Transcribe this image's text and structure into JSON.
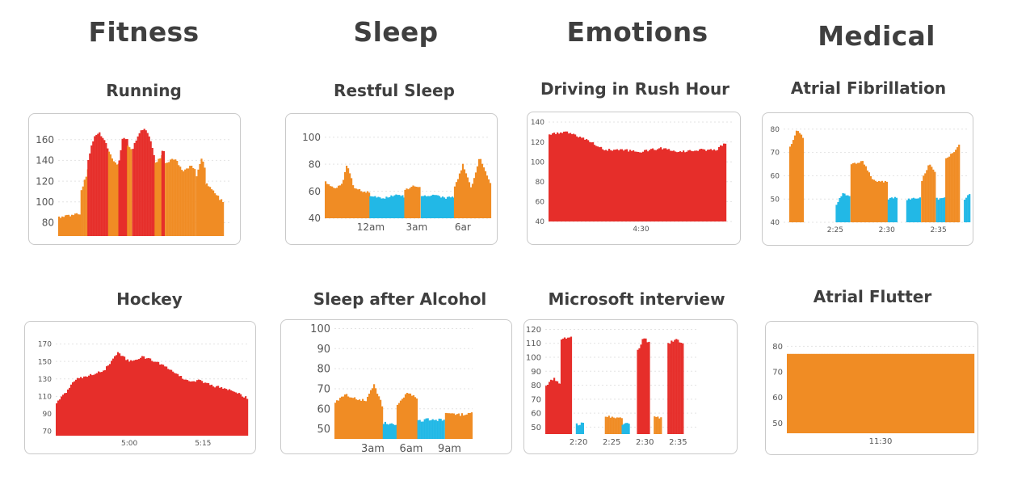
{
  "categories": [
    "Fitness",
    "Sleep",
    "Emotions",
    "Medical"
  ],
  "colors": {
    "red": "#e62e2a",
    "orange": "#f08c24",
    "blue": "#22b8e6",
    "grid": "#e3e3e3"
  },
  "chart_data": [
    {
      "type": "bar",
      "category": "Fitness",
      "title": "Running",
      "ylim": [
        67,
        177
      ],
      "yticks": [
        "80",
        "100",
        "120",
        "140",
        "160"
      ],
      "xticks": [],
      "segments": [
        {
          "from": 0,
          "to": 0.13,
          "color": "orange",
          "points": [
            [
              0,
              85
            ],
            [
              0.06,
              87
            ],
            [
              0.13,
              89
            ]
          ]
        },
        {
          "from": 0.13,
          "to": 0.17,
          "color": "orange",
          "points": [
            [
              0.13,
              110
            ],
            [
              0.17,
              132
            ]
          ]
        },
        {
          "from": 0.17,
          "to": 0.29,
          "color": "red",
          "points": [
            [
              0.17,
              140
            ],
            [
              0.2,
              161
            ],
            [
              0.23,
              167
            ],
            [
              0.26,
              162
            ],
            [
              0.29,
              148
            ]
          ]
        },
        {
          "from": 0.29,
          "to": 0.35,
          "color": "orange",
          "points": [
            [
              0.29,
              148
            ],
            [
              0.32,
              140
            ],
            [
              0.35,
              135
            ]
          ]
        },
        {
          "from": 0.35,
          "to": 0.4,
          "color": "red",
          "points": [
            [
              0.35,
              140
            ],
            [
              0.37,
              162
            ],
            [
              0.4,
              160
            ]
          ]
        },
        {
          "from": 0.4,
          "to": 0.43,
          "color": "orange",
          "points": [
            [
              0.4,
              155
            ],
            [
              0.43,
              150
            ]
          ]
        },
        {
          "from": 0.43,
          "to": 0.56,
          "color": "red",
          "points": [
            [
              0.43,
              152
            ],
            [
              0.47,
              168
            ],
            [
              0.5,
              172
            ],
            [
              0.53,
              162
            ],
            [
              0.56,
              140
            ]
          ]
        },
        {
          "from": 0.56,
          "to": 0.6,
          "color": "orange",
          "points": [
            [
              0.56,
              138
            ],
            [
              0.6,
              145
            ]
          ]
        },
        {
          "from": 0.6,
          "to": 0.62,
          "color": "red",
          "points": [
            [
              0.6,
              150
            ],
            [
              0.62,
              148
            ]
          ]
        },
        {
          "from": 0.62,
          "to": 0.8,
          "color": "orange",
          "points": [
            [
              0.62,
              138
            ],
            [
              0.67,
              142
            ],
            [
              0.72,
              130
            ],
            [
              0.77,
              135
            ],
            [
              0.8,
              128
            ]
          ]
        },
        {
          "from": 0.8,
          "to": 0.85,
          "color": "orange",
          "points": [
            [
              0.8,
              125
            ],
            [
              0.83,
              142
            ],
            [
              0.85,
              132
            ]
          ]
        },
        {
          "from": 0.85,
          "to": 0.96,
          "color": "orange",
          "points": [
            [
              0.85,
              118
            ],
            [
              0.9,
              110
            ],
            [
              0.96,
              98
            ]
          ]
        }
      ]
    },
    {
      "type": "bar",
      "category": "Sleep",
      "title": "Restful Sleep",
      "ylim": [
        40,
        104
      ],
      "yticks": [
        "40",
        "60",
        "80",
        "100"
      ],
      "xticks": [
        "12am",
        "3am",
        "6ar"
      ],
      "segments": [
        {
          "from": 0,
          "to": 0.27,
          "color": "orange",
          "points": [
            [
              0,
              67
            ],
            [
              0.05,
              62
            ],
            [
              0.1,
              65
            ],
            [
              0.13,
              80
            ],
            [
              0.17,
              63
            ],
            [
              0.22,
              60
            ],
            [
              0.27,
              59
            ]
          ]
        },
        {
          "from": 0.27,
          "to": 0.48,
          "color": "blue",
          "points": [
            [
              0.27,
              56
            ],
            [
              0.35,
              55
            ],
            [
              0.42,
              57
            ],
            [
              0.48,
              56
            ]
          ]
        },
        {
          "from": 0.48,
          "to": 0.58,
          "color": "orange",
          "points": [
            [
              0.48,
              61
            ],
            [
              0.53,
              64
            ],
            [
              0.58,
              62
            ]
          ]
        },
        {
          "from": 0.58,
          "to": 0.78,
          "color": "blue",
          "points": [
            [
              0.58,
              56
            ],
            [
              0.65,
              57
            ],
            [
              0.72,
              55
            ],
            [
              0.78,
              56
            ]
          ]
        },
        {
          "from": 0.78,
          "to": 1,
          "color": "orange",
          "points": [
            [
              0.78,
              63
            ],
            [
              0.83,
              80
            ],
            [
              0.88,
              62
            ],
            [
              0.93,
              85
            ],
            [
              1,
              65
            ]
          ]
        }
      ]
    },
    {
      "type": "bar",
      "category": "Emotions",
      "title": "Driving in Rush Hour",
      "ylim": [
        40,
        140
      ],
      "yticks": [
        "40",
        "60",
        "80",
        "100",
        "120",
        "140"
      ],
      "xticks": [
        "4:30"
      ],
      "segments": [
        {
          "from": 0,
          "to": 0.96,
          "color": "red",
          "points": [
            [
              0,
              128
            ],
            [
              0.1,
              130
            ],
            [
              0.2,
              122
            ],
            [
              0.3,
              112
            ],
            [
              0.4,
              112
            ],
            [
              0.5,
              110
            ],
            [
              0.6,
              114
            ],
            [
              0.7,
              110
            ],
            [
              0.8,
              112
            ],
            [
              0.9,
              112
            ],
            [
              0.96,
              120
            ]
          ]
        }
      ]
    },
    {
      "type": "bar",
      "category": "Medical",
      "title": "Atrial Fibrillation",
      "ylim": [
        40,
        82
      ],
      "yticks": [
        "40",
        "50",
        "60",
        "70",
        "80"
      ],
      "xticks": [
        "2:25",
        "2:30",
        "2:35"
      ],
      "segments": [
        {
          "from": 0.03,
          "to": 0.11,
          "color": "orange",
          "points": [
            [
              0.03,
              72
            ],
            [
              0.07,
              80
            ],
            [
              0.11,
              75
            ]
          ]
        },
        {
          "from": 0.28,
          "to": 0.36,
          "color": "blue",
          "points": [
            [
              0.28,
              48
            ],
            [
              0.32,
              53
            ],
            [
              0.36,
              50
            ]
          ]
        },
        {
          "from": 0.36,
          "to": 0.56,
          "color": "orange",
          "points": [
            [
              0.36,
              65
            ],
            [
              0.42,
              66
            ],
            [
              0.48,
              58
            ],
            [
              0.56,
              57
            ]
          ]
        },
        {
          "from": 0.56,
          "to": 0.61,
          "color": "blue",
          "points": [
            [
              0.56,
              50
            ],
            [
              0.61,
              51
            ]
          ]
        },
        {
          "from": 0.66,
          "to": 0.74,
          "color": "blue",
          "points": [
            [
              0.66,
              50
            ],
            [
              0.74,
              51
            ]
          ]
        },
        {
          "from": 0.74,
          "to": 0.82,
          "color": "orange",
          "points": [
            [
              0.74,
              58
            ],
            [
              0.78,
              65
            ],
            [
              0.82,
              60
            ]
          ]
        },
        {
          "from": 0.82,
          "to": 0.87,
          "color": "blue",
          "points": [
            [
              0.82,
              50
            ],
            [
              0.87,
              51
            ]
          ]
        },
        {
          "from": 0.87,
          "to": 0.95,
          "color": "orange",
          "points": [
            [
              0.87,
              67
            ],
            [
              0.91,
              70
            ],
            [
              0.95,
              75
            ]
          ]
        },
        {
          "from": 0.97,
          "to": 1,
          "color": "blue",
          "points": [
            [
              0.97,
              50
            ],
            [
              1,
              53
            ]
          ]
        }
      ]
    },
    {
      "type": "bar",
      "category": "Fitness",
      "title": "Hockey",
      "ylim": [
        65,
        177
      ],
      "yticks": [
        "70",
        "90",
        "110",
        "130",
        "150",
        "170"
      ],
      "xticks": [
        "5:00",
        "5:15"
      ],
      "segments": [
        {
          "from": 0,
          "to": 1,
          "color": "red",
          "points": [
            [
              0,
              103
            ],
            [
              0.05,
              115
            ],
            [
              0.1,
              130
            ],
            [
              0.15,
              132
            ],
            [
              0.2,
              136
            ],
            [
              0.25,
              140
            ],
            [
              0.32,
              160
            ],
            [
              0.38,
              150
            ],
            [
              0.45,
              155
            ],
            [
              0.52,
              150
            ],
            [
              0.6,
              140
            ],
            [
              0.68,
              128
            ],
            [
              0.75,
              128
            ],
            [
              0.82,
              122
            ],
            [
              0.9,
              118
            ],
            [
              1,
              108
            ]
          ]
        }
      ]
    },
    {
      "type": "bar",
      "category": "Sleep",
      "title": "Sleep after Alcohol",
      "ylim": [
        45,
        101
      ],
      "yticks": [
        "50",
        "60",
        "70",
        "80",
        "90",
        "100"
      ],
      "xticks": [
        "3am",
        "6am",
        "9am"
      ],
      "segments": [
        {
          "from": 0,
          "to": 0.35,
          "color": "orange",
          "points": [
            [
              0,
              63
            ],
            [
              0.07,
              67
            ],
            [
              0.15,
              65
            ],
            [
              0.22,
              64
            ],
            [
              0.28,
              72
            ],
            [
              0.35,
              60
            ]
          ]
        },
        {
          "from": 0.35,
          "to": 0.45,
          "color": "blue",
          "points": [
            [
              0.35,
              53
            ],
            [
              0.45,
              52
            ]
          ]
        },
        {
          "from": 0.45,
          "to": 0.6,
          "color": "orange",
          "points": [
            [
              0.45,
              62
            ],
            [
              0.52,
              68
            ],
            [
              0.6,
              65
            ]
          ]
        },
        {
          "from": 0.6,
          "to": 0.8,
          "color": "blue",
          "points": [
            [
              0.6,
              54
            ],
            [
              0.7,
              55
            ],
            [
              0.8,
              54
            ]
          ]
        },
        {
          "from": 0.8,
          "to": 1,
          "color": "orange",
          "points": [
            [
              0.8,
              58
            ],
            [
              0.9,
              57
            ],
            [
              1,
              58
            ]
          ]
        }
      ]
    },
    {
      "type": "bar",
      "category": "Emotions",
      "title": "Microsoft interview",
      "ylim": [
        45,
        122
      ],
      "yticks": [
        "50",
        "60",
        "70",
        "80",
        "90",
        "100",
        "110",
        "120"
      ],
      "xticks": [
        "2:20",
        "2:25",
        "2:30",
        "2:35"
      ],
      "segments": [
        {
          "from": 0,
          "to": 0.1,
          "color": "red",
          "points": [
            [
              0,
              80
            ],
            [
              0.05,
              85
            ],
            [
              0.1,
              80
            ]
          ]
        },
        {
          "from": 0.1,
          "to": 0.17,
          "color": "red",
          "points": [
            [
              0.1,
              112
            ],
            [
              0.17,
              116
            ]
          ]
        },
        {
          "from": 0.2,
          "to": 0.25,
          "color": "blue",
          "points": [
            [
              0.2,
              52
            ],
            [
              0.25,
              53
            ]
          ]
        },
        {
          "from": 0.39,
          "to": 0.5,
          "color": "orange",
          "points": [
            [
              0.39,
              58
            ],
            [
              0.44,
              57
            ],
            [
              0.5,
              57
            ]
          ]
        },
        {
          "from": 0.5,
          "to": 0.55,
          "color": "blue",
          "points": [
            [
              0.5,
              52
            ],
            [
              0.55,
              53
            ]
          ]
        },
        {
          "from": 0.6,
          "to": 0.68,
          "color": "red",
          "points": [
            [
              0.6,
              105
            ],
            [
              0.64,
              114
            ],
            [
              0.68,
              110
            ]
          ]
        },
        {
          "from": 0.71,
          "to": 0.76,
          "color": "orange",
          "points": [
            [
              0.71,
              57
            ],
            [
              0.76,
              57
            ]
          ]
        },
        {
          "from": 0.8,
          "to": 0.9,
          "color": "red",
          "points": [
            [
              0.8,
              110
            ],
            [
              0.85,
              113
            ],
            [
              0.9,
              110
            ]
          ]
        }
      ]
    },
    {
      "type": "bar",
      "category": "Medical",
      "title": "Atrial Flutter",
      "ylim": [
        46,
        82
      ],
      "yticks": [
        "50",
        "60",
        "70",
        "80"
      ],
      "xticks": [
        "11:30"
      ],
      "segments": [
        {
          "from": 0,
          "to": 1,
          "color": "orange",
          "points": [
            [
              0,
              77
            ],
            [
              1,
              77
            ]
          ]
        }
      ]
    }
  ]
}
